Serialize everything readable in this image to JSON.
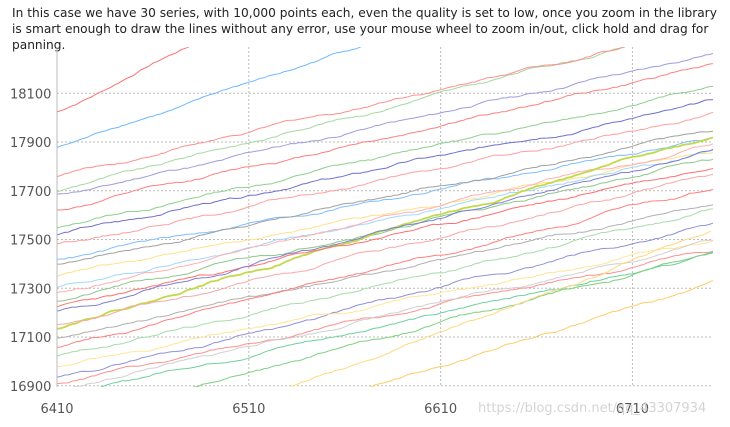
{
  "description": "In this case we have 30 series, with 10,000 points each, even the quality is set to low, once you zoom in the library is smart enough to draw the lines without any error, use your mouse wheel to zoom in/out, click hold and drag for panning.",
  "watermark": "https://blog.csdn.net/qq_43307934",
  "chart_data": {
    "type": "line",
    "title": "",
    "xlabel": "",
    "ylabel": "",
    "xlim": [
      6410,
      6752
    ],
    "ylim": [
      16895,
      18290
    ],
    "x_ticks": [
      6410,
      6510,
      6610,
      6710
    ],
    "y_ticks": [
      16900,
      17100,
      17300,
      17500,
      17700,
      17900,
      18100
    ],
    "grid": true,
    "legend": "none",
    "series_count": 30,
    "points_per_series": 10000,
    "series": [
      {
        "color": "#ff6f6f",
        "start": [
          6410,
          18020
        ],
        "slope": 4.0,
        "end_x": 6520
      },
      {
        "color": "#6fb8ff",
        "start": [
          6410,
          17880
        ],
        "slope": 2.6,
        "end_x": 6570
      },
      {
        "color": "#a6d8a0",
        "start": [
          6410,
          17700
        ],
        "slope": 2.0,
        "end_x": 6752
      },
      {
        "color": "#ff8f8f",
        "start": [
          6410,
          17760
        ],
        "slope": 1.8,
        "end_x": 6752
      },
      {
        "color": "#9d9dde",
        "start": [
          6410,
          17680
        ],
        "slope": 1.7,
        "end_x": 6752
      },
      {
        "color": "#ff7f7f",
        "start": [
          6410,
          17620
        ],
        "slope": 1.75,
        "end_x": 6752
      },
      {
        "color": "#8fcf8f",
        "start": [
          6410,
          17550
        ],
        "slope": 1.7,
        "end_x": 6752
      },
      {
        "color": "#6f6fcf",
        "start": [
          6410,
          17520
        ],
        "slope": 1.6,
        "end_x": 6752
      },
      {
        "color": "#ff9f9f",
        "start": [
          6410,
          17480
        ],
        "slope": 1.55,
        "end_x": 6752
      },
      {
        "color": "#7fbfff",
        "start": [
          6410,
          17420
        ],
        "slope": 1.45,
        "end_x": 6752
      },
      {
        "color": "#a0a0a0",
        "start": [
          6410,
          17400
        ],
        "slope": 1.6,
        "end_x": 6752
      },
      {
        "color": "#ffe08a",
        "start": [
          6410,
          17350
        ],
        "slope": 1.5,
        "end_x": 6752
      },
      {
        "color": "#9fd7ff",
        "start": [
          6410,
          17300
        ],
        "slope": 1.65,
        "end_x": 6752
      },
      {
        "color": "#ffb0b0",
        "start": [
          6410,
          17280
        ],
        "slope": 1.8,
        "end_x": 6752
      },
      {
        "color": "#8cc78c",
        "start": [
          6410,
          17250
        ],
        "slope": 1.7,
        "end_x": 6752
      },
      {
        "color": "#c2d94a",
        "start": [
          6410,
          17140
        ],
        "slope": 2.3,
        "end_x": 6752
      },
      {
        "color": "#ff7070",
        "start": [
          6410,
          17220
        ],
        "slope": 1.7,
        "end_x": 6752
      },
      {
        "color": "#7f7fd0",
        "start": [
          6410,
          17200
        ],
        "slope": 1.95,
        "end_x": 6752
      },
      {
        "color": "#f8a8a8",
        "start": [
          6410,
          17150
        ],
        "slope": 1.8,
        "end_x": 6752
      },
      {
        "color": "#b0b0b0",
        "start": [
          6410,
          17100
        ],
        "slope": 1.6,
        "end_x": 6752
      },
      {
        "color": "#ff8080",
        "start": [
          6410,
          17060
        ],
        "slope": 1.9,
        "end_x": 6752
      },
      {
        "color": "#a8dba8",
        "start": [
          6410,
          17020
        ],
        "slope": 1.75,
        "end_x": 6752
      },
      {
        "color": "#9090d8",
        "start": [
          6410,
          16930
        ],
        "slope": 1.85,
        "end_x": 6752
      },
      {
        "color": "#ff9090",
        "start": [
          6410,
          16910
        ],
        "slope": 1.6,
        "end_x": 6752
      },
      {
        "color": "#ffe599",
        "start": [
          6410,
          16980
        ],
        "slope": 1.5,
        "end_x": 6752
      },
      {
        "color": "#6fcf9f",
        "start": [
          6410,
          16860
        ],
        "slope": 1.7,
        "end_x": 6752
      },
      {
        "color": "#d0d0d0",
        "start": [
          6410,
          16880
        ],
        "slope": 1.8,
        "end_x": 6752
      },
      {
        "color": "#7ed07e",
        "start": [
          6470,
          16880
        ],
        "slope": 2.0,
        "end_x": 6752
      },
      {
        "color": "#ffd97f",
        "start": [
          6527,
          16880
        ],
        "slope": 2.9,
        "end_x": 6752
      },
      {
        "color": "#ffcc66",
        "start": [
          6560,
          16860
        ],
        "slope": 2.4,
        "end_x": 6752
      }
    ]
  }
}
